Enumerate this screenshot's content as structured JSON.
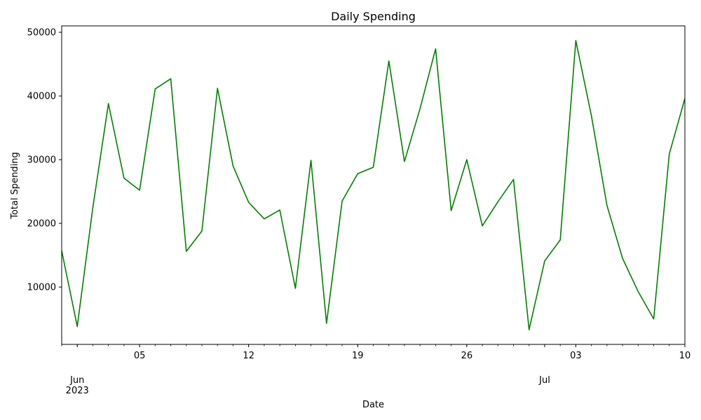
{
  "chart_data": {
    "type": "line",
    "title": "Daily Spending",
    "xlabel": "Date",
    "ylabel": "Total Spending",
    "line_color": "#008000",
    "grid": false,
    "x_range": [
      "2023-05-31",
      "2023-07-10"
    ],
    "ylim": [
      1000,
      51000
    ],
    "y_ticks": [
      10000,
      20000,
      30000,
      40000,
      50000
    ],
    "x_major_ticks": [
      {
        "date": "2023-06-01",
        "label": "Jun",
        "sublabel": "2023"
      },
      {
        "date": "2023-06-05",
        "label": "05"
      },
      {
        "date": "2023-06-12",
        "label": "12"
      },
      {
        "date": "2023-06-19",
        "label": "19"
      },
      {
        "date": "2023-06-26",
        "label": "26"
      },
      {
        "date": "2023-07-01",
        "label": "Jul"
      },
      {
        "date": "2023-07-03",
        "label": "03"
      },
      {
        "date": "2023-07-10",
        "label": "10"
      }
    ],
    "series": [
      {
        "x": [
          "2023-05-31",
          "2023-06-01",
          "2023-06-02",
          "2023-06-03",
          "2023-06-04",
          "2023-06-05",
          "2023-06-06",
          "2023-06-07",
          "2023-06-08",
          "2023-06-09",
          "2023-06-10",
          "2023-06-11",
          "2023-06-12",
          "2023-06-13",
          "2023-06-14",
          "2023-06-15",
          "2023-06-16",
          "2023-06-17",
          "2023-06-18",
          "2023-06-19",
          "2023-06-20",
          "2023-06-21",
          "2023-06-22",
          "2023-06-23",
          "2023-06-24",
          "2023-06-25",
          "2023-06-26",
          "2023-06-27",
          "2023-06-28",
          "2023-06-29",
          "2023-06-30",
          "2023-07-01",
          "2023-07-02",
          "2023-07-03",
          "2023-07-04",
          "2023-07-05",
          "2023-07-06",
          "2023-07-07",
          "2023-07-08",
          "2023-07-09",
          "2023-07-10"
        ],
        "values": [
          15700,
          3800,
          22500,
          38800,
          27100,
          25200,
          41100,
          42700,
          15600,
          18800,
          41200,
          29000,
          23300,
          20700,
          22100,
          9800,
          29900,
          4300,
          23500,
          27800,
          28800,
          45500,
          29700,
          38000,
          47400,
          22000,
          30000,
          19600,
          23400,
          26900,
          3300,
          14100,
          17400,
          48700,
          36900,
          22800,
          14500,
          9300,
          5000,
          30900,
          39600
        ]
      }
    ]
  }
}
